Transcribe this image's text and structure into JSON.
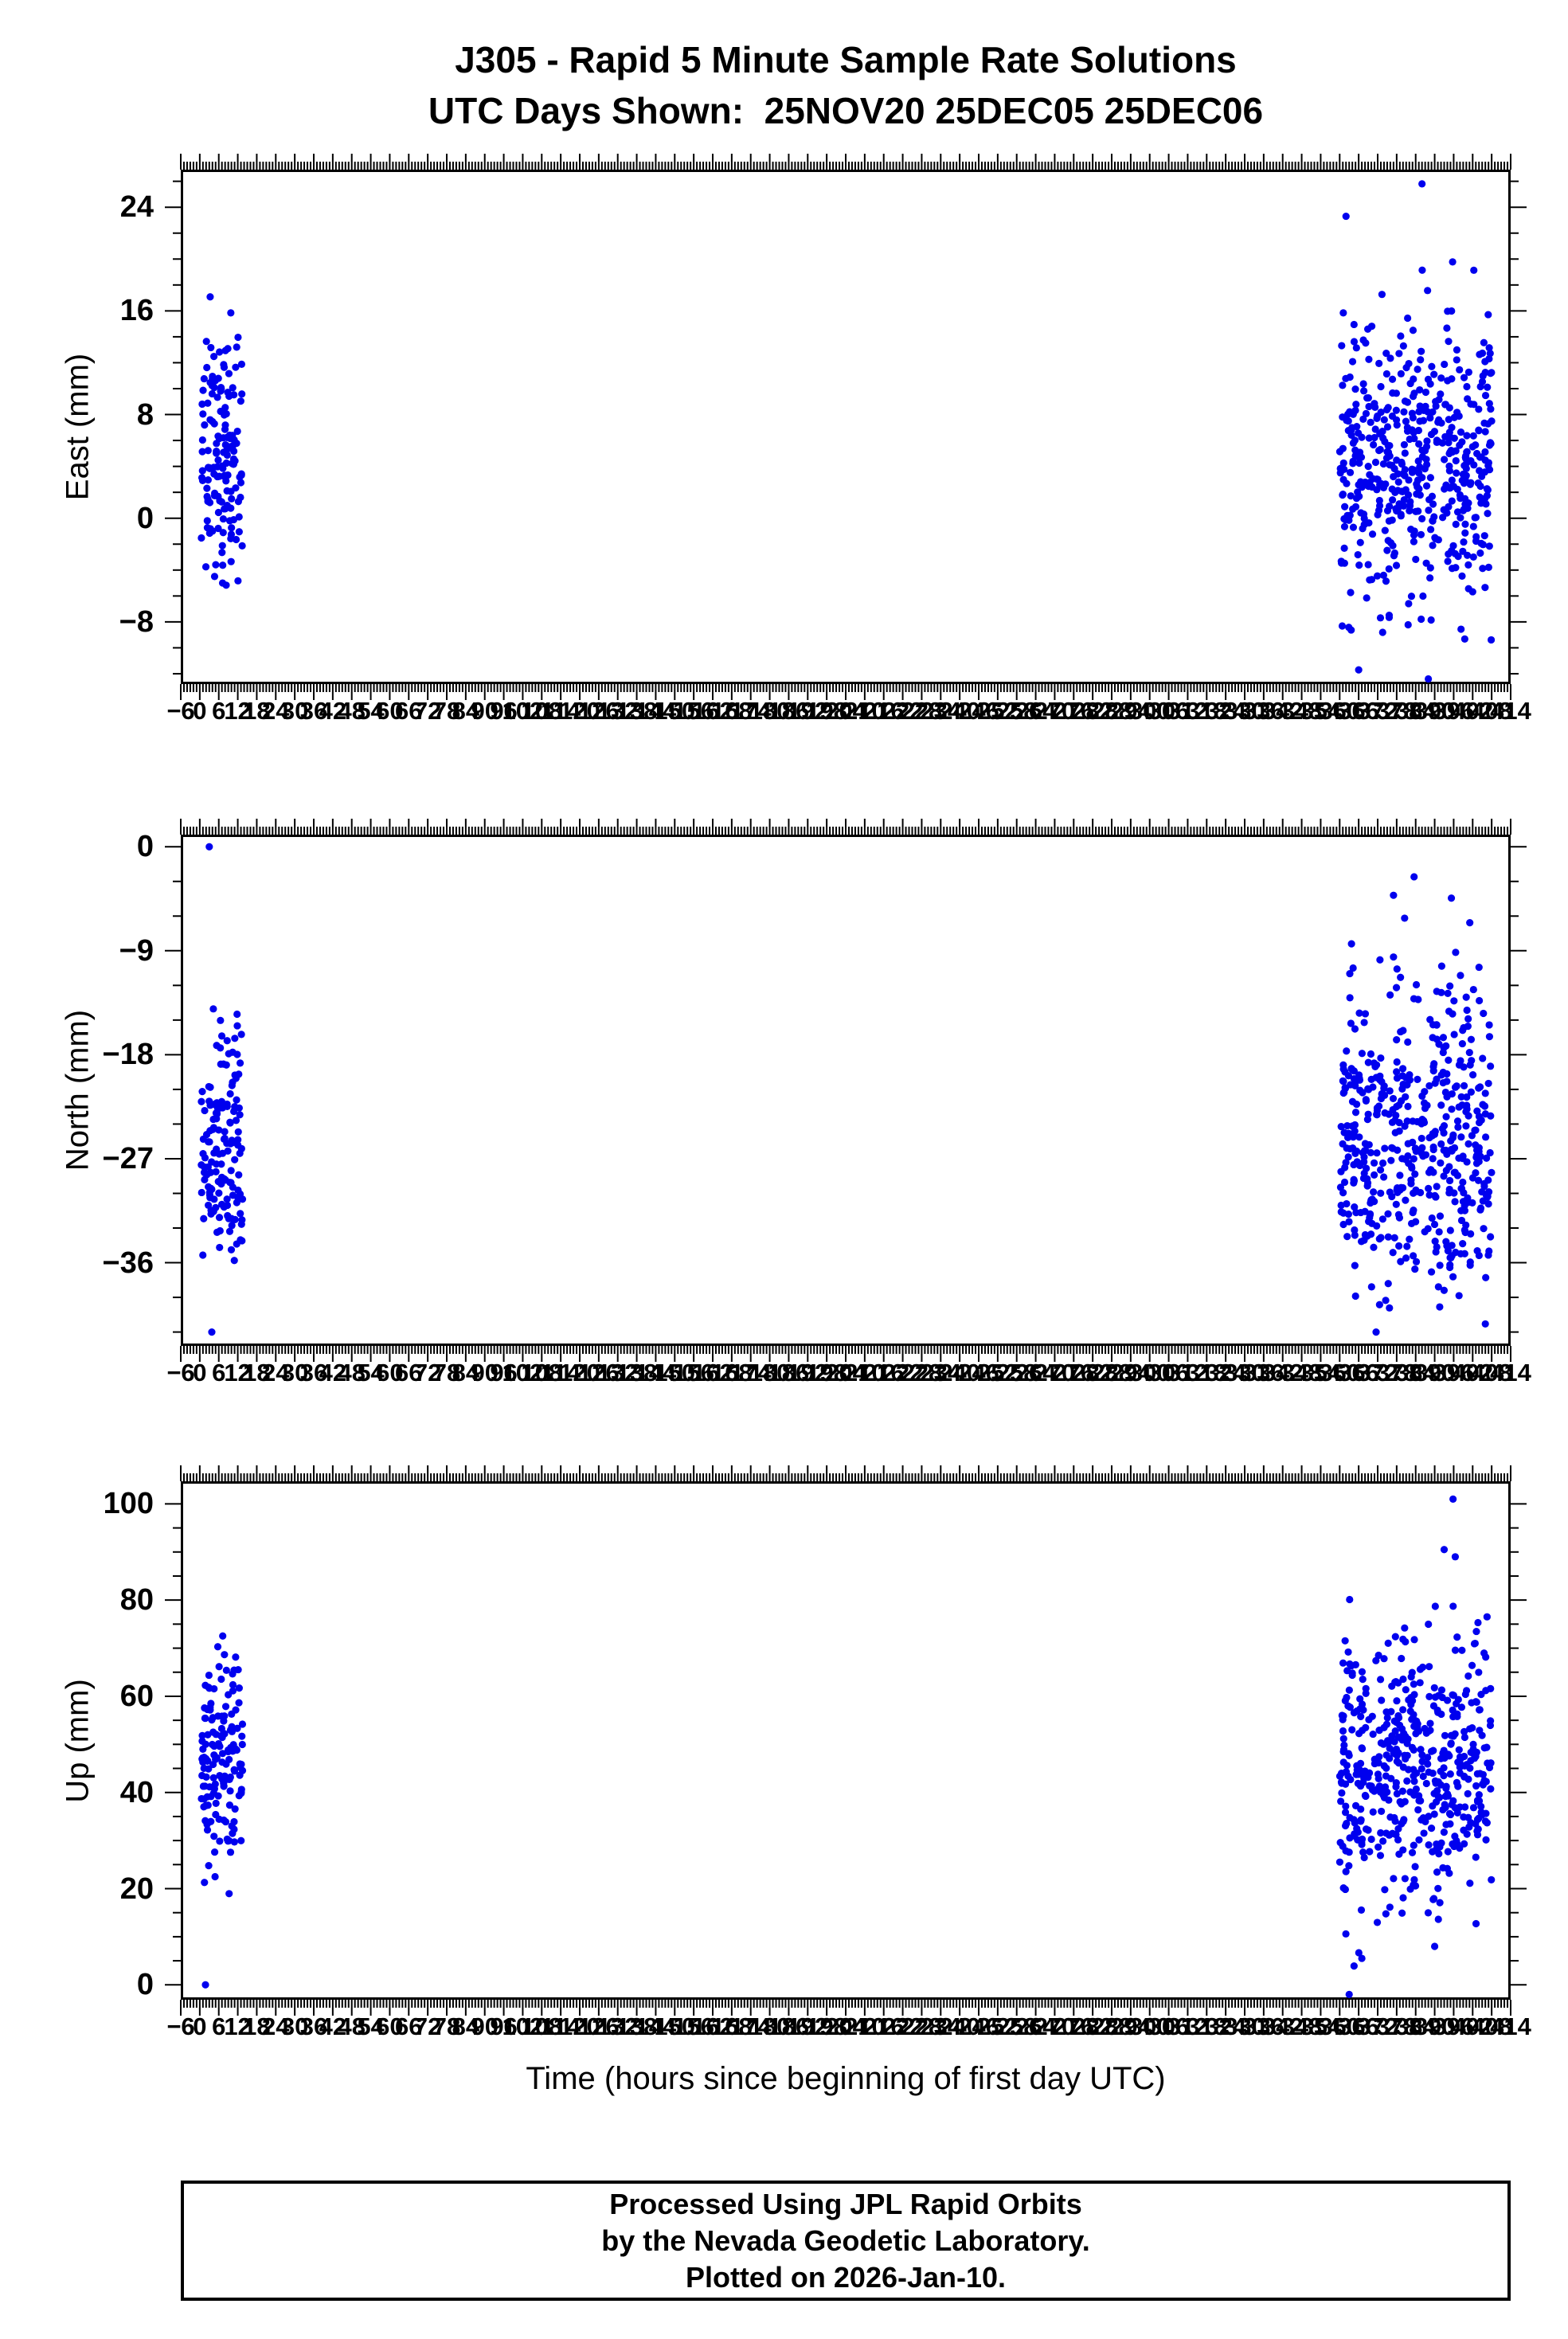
{
  "title": {
    "line1": "J305 - Rapid 5 Minute Sample Rate Solutions",
    "line2": "UTC Days Shown:  25NOV20 25DEC05 25DEC06"
  },
  "xaxis": {
    "label": "Time (hours since beginning of first day UTC)",
    "min": -6,
    "max": 414,
    "major_step": 6,
    "minor_step": 1
  },
  "marker": {
    "color": "#0000EE",
    "radius": 4.6
  },
  "footer": {
    "line1": "Processed Using JPL Rapid Orbits",
    "line2": "by the Nevada Geodetic Laboratory.",
    "line3": "Plotted on 2026-Jan-10."
  },
  "chart_data": [
    {
      "type": "scatter",
      "name": "east",
      "ylabel": "East (mm)",
      "ylim": [
        -12.8,
        26.9
      ],
      "yticks": [
        -8,
        0,
        8,
        16,
        24
      ],
      "ytick_minor_step": 2,
      "xlim": [
        -6,
        414
      ],
      "clusters": [
        {
          "day": "25NOV20",
          "x_range": [
            0.5,
            13.5
          ],
          "count": 150,
          "y_mean": 5.5,
          "y_std": 4.5,
          "y_clamp": [
            -6.8,
            19.5
          ],
          "seed": 101
        },
        {
          "day": "25DEC05-25DEC06",
          "x_range": [
            360,
            408
          ],
          "count": 500,
          "y_mean": 4.3,
          "y_std": 5.5,
          "y_clamp": [
            -11.5,
            23.5
          ],
          "seed": 102
        }
      ],
      "outliers": [
        [
          386,
          25.8
        ],
        [
          362,
          23.3
        ],
        [
          388,
          -12.4
        ],
        [
          366,
          -11.7
        ]
      ]
    },
    {
      "type": "scatter",
      "name": "north",
      "ylabel": "North (mm)",
      "ylim": [
        -43.2,
        1.05
      ],
      "yticks": [
        -36,
        -27,
        -18,
        -9,
        0
      ],
      "ytick_minor_step": 3,
      "xlim": [
        -6,
        414
      ],
      "clusters": [
        {
          "day": "25NOV20",
          "x_range": [
            0.5,
            13.5
          ],
          "count": 150,
          "y_mean": -27,
          "y_std": 5.5,
          "y_clamp": [
            -38,
            -13
          ],
          "seed": 201
        },
        {
          "day": "25DEC05-25DEC06",
          "x_range": [
            360,
            408
          ],
          "count": 500,
          "y_mean": -25.5,
          "y_std": 7,
          "y_clamp": [
            -40,
            -4
          ],
          "seed": 202
        }
      ],
      "outliers": [
        [
          3,
          0
        ],
        [
          3.8,
          -42
        ],
        [
          371.5,
          -42
        ],
        [
          406,
          -41.3
        ],
        [
          383.5,
          -2.6
        ],
        [
          377,
          -4.2
        ]
      ]
    },
    {
      "type": "scatter",
      "name": "up",
      "ylabel": "Up (mm)",
      "ylim": [
        -3.1,
        104.7
      ],
      "yticks": [
        0,
        20,
        40,
        60,
        80,
        100
      ],
      "ytick_minor_step": 5,
      "xlim": [
        -6,
        414
      ],
      "clusters": [
        {
          "day": "25NOV20",
          "x_range": [
            0.5,
            13.5
          ],
          "count": 150,
          "y_mean": 48,
          "y_std": 12,
          "y_clamp": [
            13,
            77
          ],
          "seed": 301
        },
        {
          "day": "25DEC05-25DEC06",
          "x_range": [
            360,
            408
          ],
          "count": 500,
          "y_mean": 45,
          "y_std": 14,
          "y_clamp": [
            2,
            88
          ],
          "seed": 302
        }
      ],
      "outliers": [
        [
          1.8,
          0
        ],
        [
          395.8,
          101
        ],
        [
          393,
          90.5
        ],
        [
          396.5,
          89
        ],
        [
          363,
          -2
        ],
        [
          367,
          5.5
        ],
        [
          390,
          8
        ]
      ]
    }
  ]
}
